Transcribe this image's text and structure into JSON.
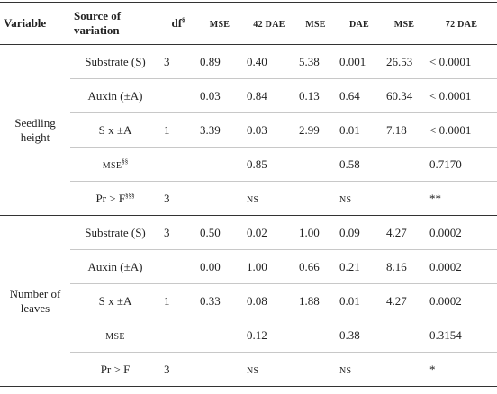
{
  "table": {
    "header": [
      {
        "text": "Variable"
      },
      {
        "text": "Source of variation"
      },
      {
        "text": "df",
        "sup": "§"
      },
      {
        "text": "MSE"
      },
      {
        "text": "42 DAE"
      },
      {
        "text": "MSE"
      },
      {
        "text": "DAE"
      },
      {
        "text": "MSE"
      },
      {
        "text": "72 DAE"
      }
    ],
    "groups": [
      {
        "variable": "Seedling height",
        "rows": [
          {
            "source": "Substrate (S)",
            "cells": [
              "3",
              "0.89",
              "0.40",
              "5.38",
              "0.001",
              "26.53",
              "< 0.0001"
            ]
          },
          {
            "source": "Auxin (±A)",
            "cells": [
              null,
              "0.03",
              "0.84",
              "0.13",
              "0.64",
              "60.34",
              "< 0.0001"
            ]
          },
          {
            "source": "S x ±A",
            "cells": [
              "1",
              "3.39",
              "0.03",
              "2.99",
              "0.01",
              "7.18",
              "< 0.0001"
            ]
          },
          {
            "source": "MSE",
            "source_sup": "§§",
            "cells": [
              null,
              null,
              "0.85",
              null,
              "0.58",
              null,
              "0.7170"
            ]
          },
          {
            "source": "Pr > F",
            "source_sup": "§§§",
            "cells": [
              "3",
              null,
              "NS",
              null,
              "NS",
              null,
              "**"
            ]
          }
        ]
      },
      {
        "variable": "Number of leaves",
        "rows": [
          {
            "source": "Substrate (S)",
            "cells": [
              "3",
              "0.50",
              "0.02",
              "1.00",
              "0.09",
              "4.27",
              "0.0002"
            ]
          },
          {
            "source": "Auxin (±A)",
            "cells": [
              null,
              "0.00",
              "1.00",
              "0.66",
              "0.21",
              "8.16",
              "0.0002"
            ]
          },
          {
            "source": "S x ±A",
            "cells": [
              "1",
              "0.33",
              "0.08",
              "1.88",
              "0.01",
              "4.27",
              "0.0002"
            ]
          },
          {
            "source": "MSE",
            "cells": [
              null,
              null,
              "0.12",
              null,
              "0.38",
              null,
              "0.3154"
            ]
          },
          {
            "source": "Pr > F",
            "cells": [
              "3",
              null,
              "NS",
              null,
              "NS",
              null,
              "*"
            ]
          }
        ]
      }
    ]
  }
}
